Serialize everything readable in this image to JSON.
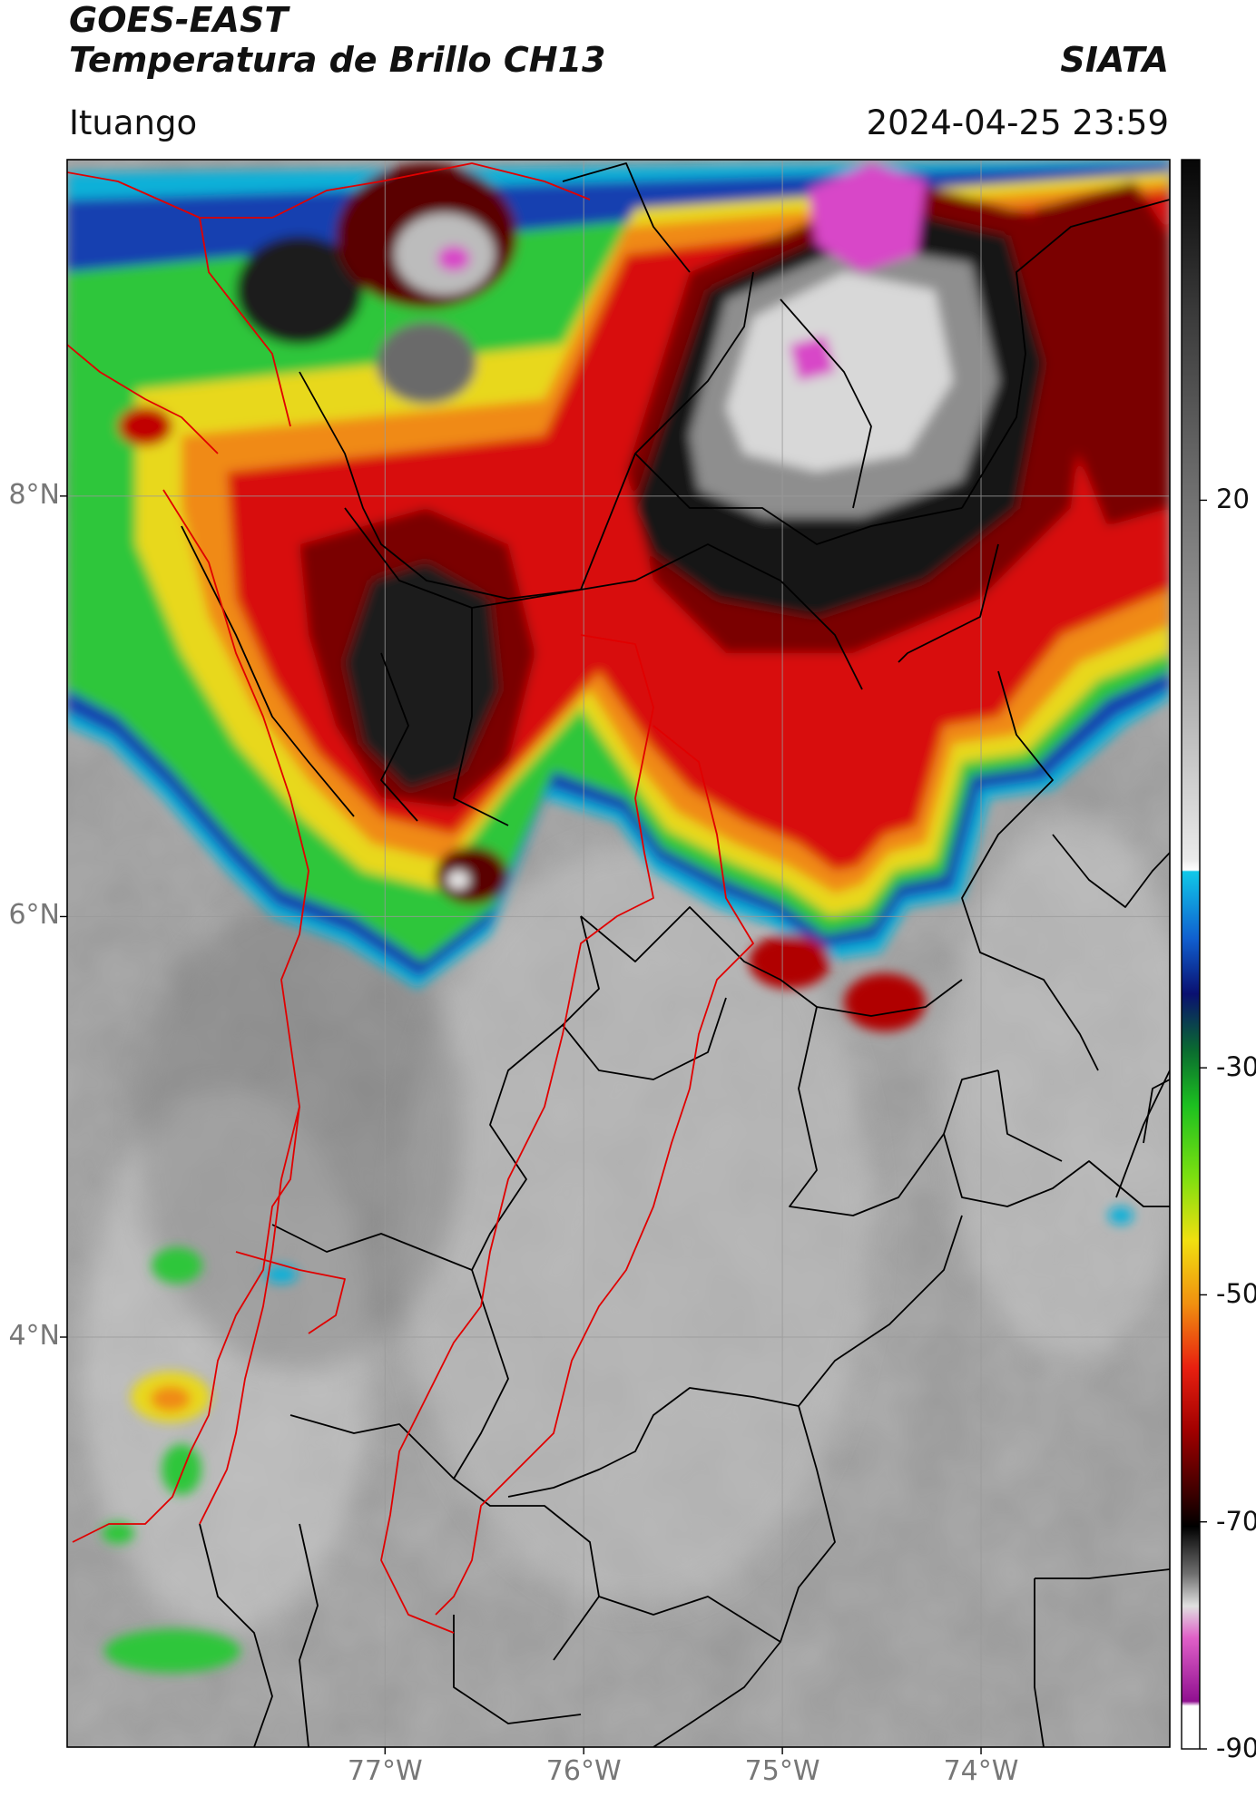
{
  "header": {
    "satellite": "GOES-EAST",
    "product": "Temperatura de Brillo CH13",
    "agency": "SIATA",
    "region": "Ituango",
    "timestamp": "2024-04-25 23:59"
  },
  "map": {
    "lon_range": [
      -78.6,
      -73.05
    ],
    "lat_range": [
      2.05,
      9.6
    ],
    "lat_ticks": [
      {
        "value": 8,
        "label": "8°N"
      },
      {
        "value": 6,
        "label": "6°N"
      },
      {
        "value": 4,
        "label": "4°N"
      }
    ],
    "lon_ticks": [
      {
        "value": -77,
        "label": "77°W"
      },
      {
        "value": -76,
        "label": "76°W"
      },
      {
        "value": -75,
        "label": "75°W"
      },
      {
        "value": -74,
        "label": "74°W"
      }
    ],
    "grid": true,
    "colors": {
      "highlight_boundary": "#e00000",
      "boundary": "#000000"
    }
  },
  "colorbar": {
    "range": [
      -90,
      50
    ],
    "ticks": [
      {
        "value": 20,
        "label": "20"
      },
      {
        "value": -30,
        "label": "-30"
      },
      {
        "value": -50,
        "label": "-50"
      },
      {
        "value": -70,
        "label": "-70"
      },
      {
        "value": -90,
        "label": "-90"
      }
    ]
  }
}
